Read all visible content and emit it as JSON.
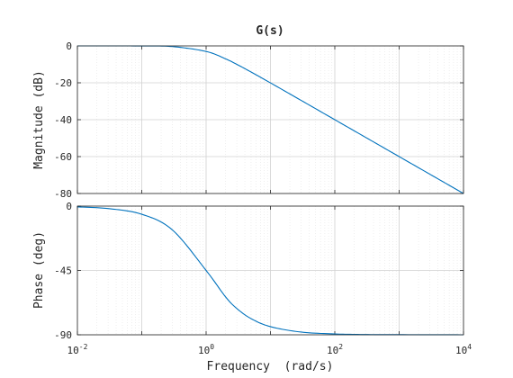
{
  "chart_data": {
    "type": "line",
    "title": "G(s)",
    "xlabel": "Frequency  (rad/s)",
    "xscale": "log",
    "xlim": [
      0.01,
      10000
    ],
    "x_ticks": [
      {
        "base": "10",
        "exp": "-2"
      },
      {
        "base": "10",
        "exp": "0"
      },
      {
        "base": "10",
        "exp": "2"
      },
      {
        "base": "10",
        "exp": "4"
      }
    ],
    "grid": true,
    "line_color": "#0072BD",
    "panels": [
      {
        "name": "magnitude",
        "ylabel": "Magnitude (dB)",
        "ylim": [
          -80,
          0
        ],
        "yticks": [
          0,
          -20,
          -40,
          -60,
          -80
        ],
        "series": [
          {
            "x": [
              0.01,
              0.03,
              0.1,
              0.3,
              1,
              2,
              3,
              5,
              10,
              30,
              100,
              300,
              1000,
              3000,
              10000
            ],
            "y": [
              0.0,
              0.0,
              -0.04,
              -0.37,
              -3.01,
              -6.99,
              -10.0,
              -14.15,
              -20.04,
              -29.54,
              -40.0,
              -49.54,
              -60.0,
              -69.54,
              -80.0
            ]
          }
        ]
      },
      {
        "name": "phase",
        "ylabel": "Phase (deg)",
        "ylim": [
          -90,
          0
        ],
        "yticks": [
          0,
          -45,
          -90
        ],
        "series": [
          {
            "x": [
              0.01,
              0.03,
              0.1,
              0.3,
              1,
              2,
              3,
              5,
              10,
              30,
              100,
              300,
              1000,
              10000
            ],
            "y": [
              -0.57,
              -1.72,
              -5.71,
              -16.7,
              -45.0,
              -63.4,
              -71.6,
              -78.7,
              -84.3,
              -88.1,
              -89.4,
              -89.8,
              -89.9,
              -90.0
            ]
          }
        ]
      }
    ]
  }
}
